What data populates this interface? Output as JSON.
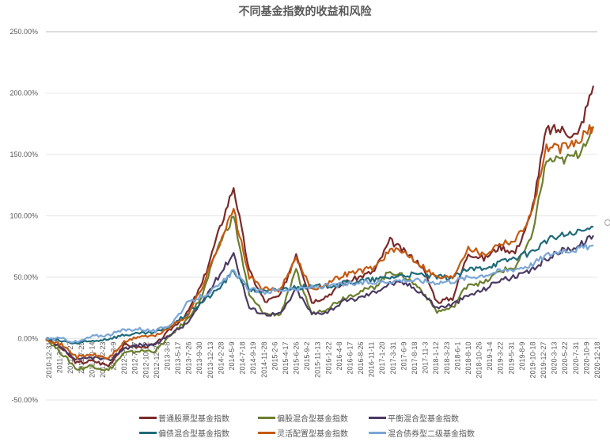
{
  "chart_data": {
    "type": "line",
    "title": "不同基金指数的收益和风险",
    "xlabel": "",
    "ylabel": "",
    "ylim": [
      -0.5,
      2.5
    ],
    "yticks": [
      "250.00%",
      "200.00%",
      "150.00%",
      "100.00%",
      "50.00%",
      "0.00%",
      "-50.00%"
    ],
    "grid": true,
    "legend_position": "bottom",
    "x_tick_labels": [
      "2010-12-31",
      "2011-3-11",
      "2011-5-27",
      "2011-7-29",
      "2011-10-14",
      "2011-12-23",
      "2012-3-9",
      "2012-5-18",
      "2012-7-27",
      "2012-10-12",
      "2012-12-21",
      "2013-3-8",
      "2013-5-17",
      "2013-7-26",
      "2013-9-30",
      "2013-12-13",
      "2014-2-28",
      "2014-5-9",
      "2014-7-18",
      "2014-9-19",
      "2014-11-28",
      "2015-2-6",
      "2015-4-17",
      "2015-6-26",
      "2015-9-2",
      "2015-11-13",
      "2016-1-22",
      "2016-4-8",
      "2016-6-17",
      "2016-8-26",
      "2016-11-11",
      "2017-1-20",
      "2017-3-31",
      "2017-6-9",
      "2017-8-18",
      "2017-11-3",
      "2018-1-12",
      "2018-3-23",
      "2018-6-1",
      "2018-8-10",
      "2018-10-26",
      "2019-1-4",
      "2019-3-22",
      "2019-5-31",
      "2019-8-9",
      "2019-10-18",
      "2019-12-27",
      "2020-3-13",
      "2020-5-22",
      "2020-7-31",
      "2020-10-9",
      "2020-12-18"
    ],
    "x": [
      "2010-12-31",
      "2011-6",
      "2011-12",
      "2012-6",
      "2012-12",
      "2013-6",
      "2013-12",
      "2014-6",
      "2014-10",
      "2015-1",
      "2015-3",
      "2015-5",
      "2015-6",
      "2015-7",
      "2015-8",
      "2015-9",
      "2015-11",
      "2016-1",
      "2016-3",
      "2016-6",
      "2016-12",
      "2017-6",
      "2017-11",
      "2018-3",
      "2018-7",
      "2018-10",
      "2019-1",
      "2019-4",
      "2019-8",
      "2019-12",
      "2020-3",
      "2020-5",
      "2020-7",
      "2020-9",
      "2020-11",
      "2020-12-31"
    ],
    "series": [
      {
        "name": "普通股票型基金指数",
        "color": "#7b2a2a",
        "values": [
          0,
          -0.08,
          -0.2,
          -0.18,
          -0.22,
          -0.05,
          -0.07,
          -0.05,
          0.08,
          0.2,
          0.45,
          0.85,
          1.24,
          0.55,
          0.3,
          0.35,
          0.7,
          0.3,
          0.35,
          0.45,
          0.5,
          0.55,
          0.8,
          0.7,
          0.6,
          0.3,
          0.33,
          0.7,
          0.65,
          0.75,
          0.7,
          1.0,
          1.7,
          1.7,
          1.65,
          2.06
        ]
      },
      {
        "name": "偏股混合型基金指数",
        "color": "#6b7f2d",
        "values": [
          0,
          -0.12,
          -0.25,
          -0.22,
          -0.26,
          -0.12,
          -0.1,
          -0.1,
          0.03,
          0.15,
          0.35,
          0.75,
          1.0,
          0.35,
          0.2,
          0.2,
          0.55,
          0.2,
          0.25,
          0.33,
          0.38,
          0.42,
          0.55,
          0.5,
          0.4,
          0.22,
          0.25,
          0.45,
          0.45,
          0.55,
          0.58,
          0.8,
          1.45,
          1.45,
          1.5,
          1.72
        ]
      },
      {
        "name": "平衡混合型基金指数",
        "color": "#4b3a63",
        "values": [
          0,
          -0.08,
          -0.18,
          -0.15,
          -0.18,
          -0.08,
          -0.05,
          -0.05,
          0.04,
          0.12,
          0.3,
          0.5,
          0.7,
          0.25,
          0.2,
          0.2,
          0.4,
          0.2,
          0.22,
          0.3,
          0.33,
          0.38,
          0.45,
          0.45,
          0.38,
          0.25,
          0.28,
          0.35,
          0.4,
          0.48,
          0.5,
          0.55,
          0.65,
          0.72,
          0.75,
          0.84
        ]
      },
      {
        "name": "偏债混合型基金指数",
        "color": "#1f6b7a",
        "values": [
          0,
          -0.02,
          -0.04,
          -0.02,
          0,
          0.03,
          0.04,
          0.05,
          0.1,
          0.2,
          0.3,
          0.4,
          0.55,
          0.4,
          0.38,
          0.4,
          0.42,
          0.42,
          0.43,
          0.45,
          0.47,
          0.48,
          0.5,
          0.52,
          0.52,
          0.5,
          0.5,
          0.56,
          0.58,
          0.62,
          0.66,
          0.7,
          0.8,
          0.84,
          0.86,
          0.91
        ]
      },
      {
        "name": "灵活配置型基金指数",
        "color": "#c55a11",
        "values": [
          0,
          -0.05,
          -0.15,
          -0.13,
          -0.16,
          -0.03,
          0.02,
          0.02,
          0.1,
          0.18,
          0.42,
          0.75,
          1.05,
          0.5,
          0.4,
          0.4,
          0.65,
          0.4,
          0.45,
          0.52,
          0.55,
          0.58,
          0.72,
          0.7,
          0.6,
          0.5,
          0.5,
          0.75,
          0.68,
          0.78,
          0.8,
          1.0,
          1.55,
          1.55,
          1.6,
          1.73
        ]
      },
      {
        "name": "混合债券型二级基金指数",
        "color": "#7aa6d6",
        "values": [
          0,
          0,
          -0.03,
          0.02,
          0.03,
          0.07,
          0.08,
          0.06,
          0.12,
          0.28,
          0.35,
          0.42,
          0.55,
          0.4,
          0.38,
          0.4,
          0.4,
          0.42,
          0.43,
          0.44,
          0.45,
          0.46,
          0.47,
          0.48,
          0.47,
          0.46,
          0.47,
          0.5,
          0.52,
          0.55,
          0.57,
          0.6,
          0.68,
          0.72,
          0.73,
          0.76
        ]
      }
    ]
  },
  "legend": {
    "items": [
      {
        "label": "普通股票型基金指数",
        "color": "#7b2a2a"
      },
      {
        "label": "偏股混合型基金指数",
        "color": "#6b7f2d"
      },
      {
        "label": "平衡混合型基金指数",
        "color": "#4b3a63"
      },
      {
        "label": "偏债混合型基金指数",
        "color": "#1f6b7a"
      },
      {
        "label": "灵活配置型基金指数",
        "color": "#c55a11"
      },
      {
        "label": "混合债券型二级基金指数",
        "color": "#7aa6d6"
      }
    ]
  }
}
